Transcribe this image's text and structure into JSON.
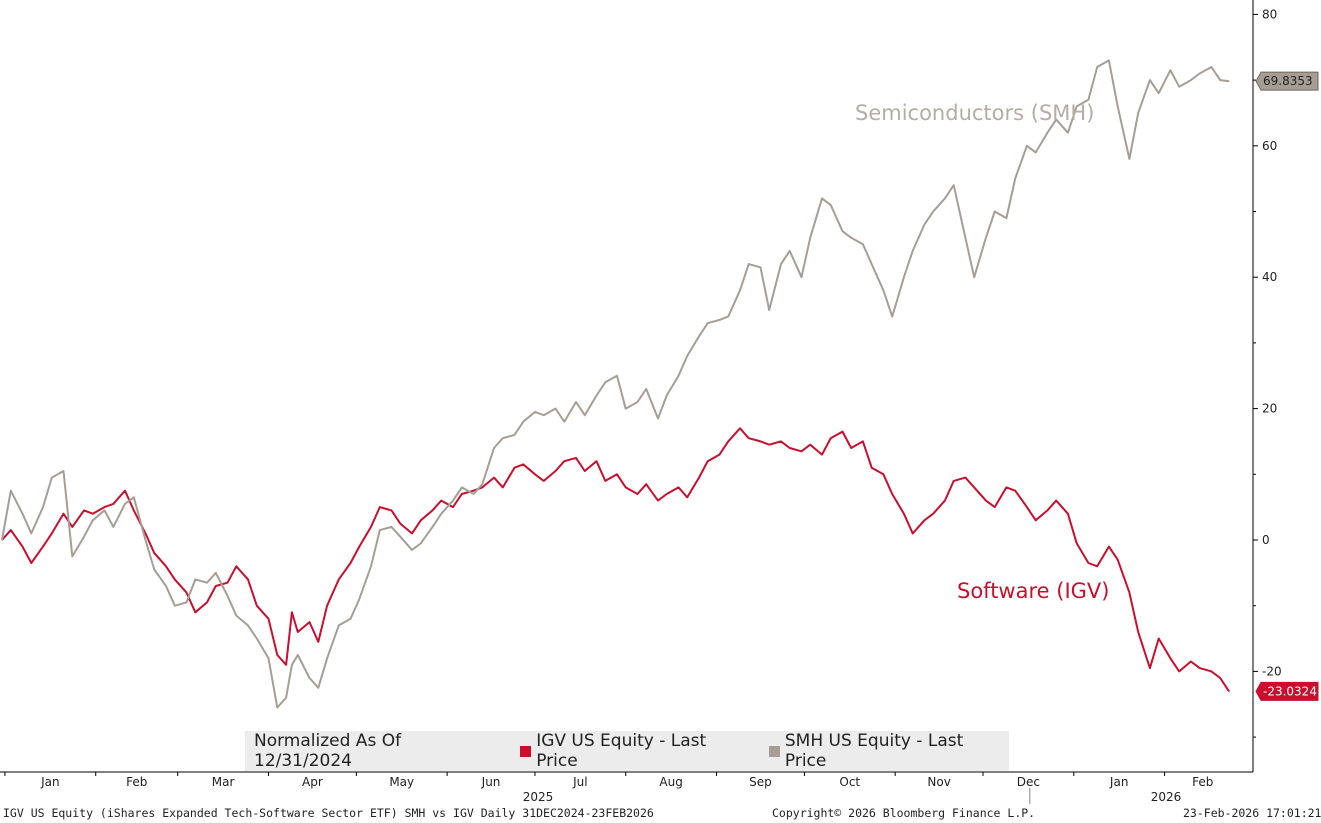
{
  "legend": {
    "title": "Normalized As Of 12/31/2024",
    "igv": "IGV US Equity - Last Price",
    "smh": "SMH US Equity - Last Price"
  },
  "footer": {
    "left": "IGV US Equity (iShares Expanded Tech-Software Sector ETF) SMH vs IGV Daily 31DEC2024-23FEB2026",
    "copyright": "Copyright© 2026 Bloomberg Finance L.P.",
    "timestamp": "23-Feb-2026 17:01:21"
  },
  "colors": {
    "igv": "#c8102e",
    "smh": "#a69e94",
    "grid": "#000000"
  },
  "chart_data": {
    "type": "line",
    "title": "",
    "xlabel": "",
    "ylabel": "",
    "ylim": [
      -30,
      80
    ],
    "yticks": [
      -20,
      0,
      20,
      40,
      60,
      80
    ],
    "x_range": [
      "2024-12-31",
      "2026-02-23"
    ],
    "months": [
      "Jan",
      "Feb",
      "Mar",
      "Apr",
      "May",
      "Jun",
      "Jul",
      "Aug",
      "Sep",
      "Oct",
      "Nov",
      "Dec",
      "Jan",
      "Feb"
    ],
    "years": [
      "2025",
      "2026"
    ],
    "annotations": {
      "smh": "Semiconductors (SMH)",
      "igv": "Software (IGV)"
    },
    "last_values": {
      "smh": "69.8353",
      "igv": "-23.0324"
    },
    "series": [
      {
        "name": "IGV US Equity - Last Price",
        "key": "igv",
        "x": [
          "2024-12-31",
          "2025-01-03",
          "2025-01-07",
          "2025-01-10",
          "2025-01-14",
          "2025-01-17",
          "2025-01-21",
          "2025-01-24",
          "2025-01-28",
          "2025-01-31",
          "2025-02-04",
          "2025-02-07",
          "2025-02-11",
          "2025-02-14",
          "2025-02-18",
          "2025-02-21",
          "2025-02-25",
          "2025-02-28",
          "2025-03-04",
          "2025-03-07",
          "2025-03-11",
          "2025-03-14",
          "2025-03-18",
          "2025-03-21",
          "2025-03-25",
          "2025-03-28",
          "2025-04-01",
          "2025-04-04",
          "2025-04-07",
          "2025-04-09",
          "2025-04-11",
          "2025-04-15",
          "2025-04-18",
          "2025-04-21",
          "2025-04-25",
          "2025-04-29",
          "2025-05-02",
          "2025-05-06",
          "2025-05-09",
          "2025-05-13",
          "2025-05-16",
          "2025-05-20",
          "2025-05-23",
          "2025-05-27",
          "2025-05-30",
          "2025-06-03",
          "2025-06-06",
          "2025-06-10",
          "2025-06-13",
          "2025-06-17",
          "2025-06-20",
          "2025-06-24",
          "2025-06-27",
          "2025-07-01",
          "2025-07-04",
          "2025-07-08",
          "2025-07-11",
          "2025-07-15",
          "2025-07-18",
          "2025-07-22",
          "2025-07-25",
          "2025-07-29",
          "2025-08-01",
          "2025-08-05",
          "2025-08-08",
          "2025-08-12",
          "2025-08-15",
          "2025-08-19",
          "2025-08-22",
          "2025-08-26",
          "2025-08-29",
          "2025-09-02",
          "2025-09-05",
          "2025-09-09",
          "2025-09-12",
          "2025-09-16",
          "2025-09-19",
          "2025-09-23",
          "2025-09-26",
          "2025-09-30",
          "2025-10-03",
          "2025-10-07",
          "2025-10-10",
          "2025-10-14",
          "2025-10-17",
          "2025-10-21",
          "2025-10-24",
          "2025-10-28",
          "2025-10-31",
          "2025-11-04",
          "2025-11-07",
          "2025-11-11",
          "2025-11-14",
          "2025-11-18",
          "2025-11-21",
          "2025-11-25",
          "2025-11-28",
          "2025-12-02",
          "2025-12-05",
          "2025-12-09",
          "2025-12-12",
          "2025-12-16",
          "2025-12-19",
          "2025-12-23",
          "2025-12-26",
          "2025-12-30",
          "2026-01-02",
          "2026-01-06",
          "2026-01-09",
          "2026-01-13",
          "2026-01-16",
          "2026-01-20",
          "2026-01-23",
          "2026-01-27",
          "2026-01-30",
          "2026-02-03",
          "2026-02-06",
          "2026-02-10",
          "2026-02-13",
          "2026-02-17",
          "2026-02-20",
          "2026-02-23"
        ],
        "values": [
          0.0,
          1.5,
          -1.0,
          -3.5,
          -1.0,
          1.0,
          4.0,
          2.0,
          4.5,
          4.0,
          5.0,
          5.5,
          7.5,
          4.5,
          1.0,
          -2.0,
          -4.0,
          -6.0,
          -8.0,
          -11.0,
          -9.5,
          -7.0,
          -6.5,
          -4.0,
          -6.0,
          -10.0,
          -12.0,
          -17.5,
          -19.0,
          -11.0,
          -14.0,
          -12.5,
          -15.5,
          -10.0,
          -6.0,
          -3.5,
          -1.0,
          2.0,
          5.0,
          4.5,
          2.5,
          1.0,
          3.0,
          4.5,
          6.0,
          5.0,
          7.0,
          7.5,
          8.0,
          9.5,
          8.0,
          11.0,
          11.5,
          10.0,
          9.0,
          10.5,
          12.0,
          12.5,
          10.5,
          12.0,
          9.0,
          10.0,
          8.0,
          7.0,
          8.5,
          6.0,
          7.0,
          8.0,
          6.5,
          9.5,
          12.0,
          13.0,
          15.0,
          17.0,
          15.5,
          15.0,
          14.5,
          15.0,
          14.0,
          13.5,
          14.5,
          13.0,
          15.5,
          16.5,
          14.0,
          15.0,
          11.0,
          10.0,
          7.0,
          4.0,
          1.0,
          3.0,
          4.0,
          6.0,
          9.0,
          9.5,
          8.0,
          6.0,
          5.0,
          8.0,
          7.5,
          5.0,
          3.0,
          4.5,
          6.0,
          4.0,
          -0.5,
          -3.5,
          -4.0,
          -1.0,
          -3.0,
          -8.0,
          -14.0,
          -19.5,
          -15.0,
          -18.0,
          -20.0,
          -18.5,
          -19.5,
          -20.0,
          -21.0,
          -23.0324
        ]
      },
      {
        "name": "SMH US Equity - Last Price",
        "key": "smh",
        "x": [
          "2024-12-31",
          "2025-01-03",
          "2025-01-07",
          "2025-01-10",
          "2025-01-14",
          "2025-01-17",
          "2025-01-21",
          "2025-01-24",
          "2025-01-28",
          "2025-01-31",
          "2025-02-04",
          "2025-02-07",
          "2025-02-11",
          "2025-02-14",
          "2025-02-18",
          "2025-02-21",
          "2025-02-25",
          "2025-02-28",
          "2025-03-04",
          "2025-03-07",
          "2025-03-11",
          "2025-03-14",
          "2025-03-18",
          "2025-03-21",
          "2025-03-25",
          "2025-03-28",
          "2025-04-01",
          "2025-04-04",
          "2025-04-07",
          "2025-04-09",
          "2025-04-11",
          "2025-04-15",
          "2025-04-18",
          "2025-04-21",
          "2025-04-25",
          "2025-04-29",
          "2025-05-02",
          "2025-05-06",
          "2025-05-09",
          "2025-05-13",
          "2025-05-16",
          "2025-05-20",
          "2025-05-23",
          "2025-05-27",
          "2025-05-30",
          "2025-06-03",
          "2025-06-06",
          "2025-06-10",
          "2025-06-13",
          "2025-06-17",
          "2025-06-20",
          "2025-06-24",
          "2025-06-27",
          "2025-07-01",
          "2025-07-04",
          "2025-07-08",
          "2025-07-11",
          "2025-07-15",
          "2025-07-18",
          "2025-07-22",
          "2025-07-25",
          "2025-07-29",
          "2025-08-01",
          "2025-08-05",
          "2025-08-08",
          "2025-08-12",
          "2025-08-15",
          "2025-08-19",
          "2025-08-22",
          "2025-08-26",
          "2025-08-29",
          "2025-09-02",
          "2025-09-05",
          "2025-09-09",
          "2025-09-12",
          "2025-09-16",
          "2025-09-19",
          "2025-09-23",
          "2025-09-26",
          "2025-09-30",
          "2025-10-03",
          "2025-10-07",
          "2025-10-10",
          "2025-10-14",
          "2025-10-17",
          "2025-10-21",
          "2025-10-24",
          "2025-10-28",
          "2025-10-31",
          "2025-11-04",
          "2025-11-07",
          "2025-11-11",
          "2025-11-14",
          "2025-11-18",
          "2025-11-21",
          "2025-11-25",
          "2025-11-28",
          "2025-12-02",
          "2025-12-05",
          "2025-12-09",
          "2025-12-12",
          "2025-12-16",
          "2025-12-19",
          "2025-12-23",
          "2025-12-26",
          "2025-12-30",
          "2026-01-02",
          "2026-01-06",
          "2026-01-09",
          "2026-01-13",
          "2026-01-16",
          "2026-01-20",
          "2026-01-23",
          "2026-01-27",
          "2026-01-30",
          "2026-02-03",
          "2026-02-06",
          "2026-02-10",
          "2026-02-13",
          "2026-02-17",
          "2026-02-20",
          "2026-02-23"
        ],
        "values": [
          0.0,
          7.5,
          4.0,
          1.0,
          5.0,
          9.5,
          10.5,
          -2.5,
          0.5,
          3.0,
          4.5,
          2.0,
          5.5,
          6.5,
          0.0,
          -4.5,
          -7.0,
          -10.0,
          -9.5,
          -6.0,
          -6.5,
          -5.0,
          -8.5,
          -11.5,
          -13.0,
          -15.0,
          -18.0,
          -25.5,
          -24.0,
          -19.0,
          -17.5,
          -21.0,
          -22.5,
          -18.0,
          -13.0,
          -12.0,
          -9.0,
          -4.0,
          1.5,
          2.0,
          0.5,
          -1.5,
          -0.5,
          2.0,
          4.0,
          6.0,
          8.0,
          7.0,
          8.5,
          14.0,
          15.5,
          16.0,
          18.0,
          19.5,
          19.0,
          20.0,
          18.0,
          21.0,
          19.0,
          22.0,
          24.0,
          25.0,
          20.0,
          21.0,
          23.0,
          18.5,
          22.0,
          25.0,
          28.0,
          31.0,
          33.0,
          33.5,
          34.0,
          38.0,
          42.0,
          41.5,
          35.0,
          42.0,
          44.0,
          40.0,
          46.0,
          52.0,
          51.0,
          47.0,
          46.0,
          45.0,
          42.0,
          38.0,
          34.0,
          40.0,
          44.0,
          48.0,
          50.0,
          52.0,
          54.0,
          46.0,
          40.0,
          46.0,
          50.0,
          49.0,
          55.0,
          60.0,
          59.0,
          62.0,
          64.0,
          62.0,
          66.0,
          67.0,
          72.0,
          73.0,
          66.0,
          58.0,
          65.0,
          70.0,
          68.0,
          71.5,
          69.0,
          70.0,
          71.0,
          72.0,
          70.0,
          69.8353
        ]
      }
    ]
  }
}
